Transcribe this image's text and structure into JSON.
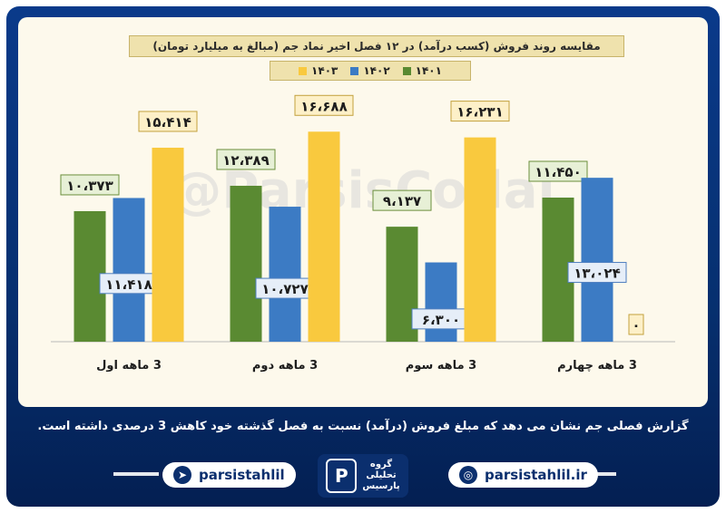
{
  "chart_data": {
    "type": "bar",
    "title": "مقایسه روند فروش (کسب درآمد) در ۱۲ فصل اخیر نماد جم (مبالغ به میلیارد تومان)",
    "categories": [
      "3 ماهه اول",
      "3 ماهه دوم",
      "3 ماهه سوم",
      "3 ماهه چهارم"
    ],
    "series": [
      {
        "name": "۱۴۰۱",
        "color": "#5a8a32",
        "values": [
          10373,
          12389,
          9137,
          11450
        ],
        "labels": [
          "۱۰،۳۷۳",
          "۱۲،۳۸۹",
          "۹،۱۳۷",
          "۱۱،۴۵۰"
        ]
      },
      {
        "name": "۱۴۰۲",
        "color": "#3c7bc4",
        "values": [
          11418,
          10727,
          6300,
          13024
        ],
        "labels": [
          "۱۱،۴۱۸",
          "۱۰،۷۲۷",
          "۶،۳۰۰",
          "۱۳،۰۲۴"
        ]
      },
      {
        "name": "۱۴۰۳",
        "color": "#f9c93e",
        "values": [
          15414,
          16688,
          16231,
          0
        ],
        "labels": [
          "۱۵،۴۱۴",
          "۱۶،۶۸۸",
          "۱۶،۲۳۱",
          "۰"
        ]
      }
    ],
    "ylim": [
      0,
      17500
    ],
    "grid": false,
    "legend_position": "top-center"
  },
  "watermark": "@ParsisCodal",
  "caption": "گزارش فصلی جم نشان می دهد که مبلغ فروش (درآمد) نسبت به فصل گذشته خود کاهش 3 درصدی داشته است.",
  "footer": {
    "telegram_handle": "parsistahlil",
    "website": "parsistahlil.ir",
    "logo_lines": [
      "گروه",
      "تحلیلی",
      "پارسیس"
    ],
    "telegram_icon": "telegram-icon",
    "globe_icon": "globe-icon"
  }
}
